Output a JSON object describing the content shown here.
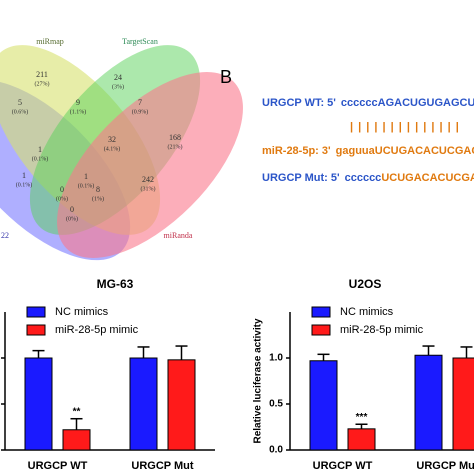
{
  "venn": {
    "sets": [
      "miRmap",
      "TargetScan",
      "miRanda",
      "22"
    ],
    "regions": [
      {
        "count": 211,
        "percent": "(27%)"
      },
      {
        "count": 24,
        "percent": "(3%)"
      },
      {
        "count": 5,
        "percent": "(0.6%)"
      },
      {
        "count": 9,
        "percent": "(1.1%)"
      },
      {
        "count": 7,
        "percent": "(0.9%)"
      },
      {
        "count": 168,
        "percent": "(21%)"
      },
      {
        "count": 1,
        "percent": "(0.1%)"
      },
      {
        "count": 32,
        "percent": "(4.1%)"
      },
      {
        "count": 1,
        "percent": "(0.1%)"
      },
      {
        "count": 1,
        "percent": "(0.1%)"
      },
      {
        "count": 242,
        "percent": "(31%)"
      },
      {
        "count": 0,
        "percent": "(0%)"
      },
      {
        "count": 8,
        "percent": "(1%)"
      },
      {
        "count": 0,
        "percent": "(0%)"
      }
    ]
  },
  "panel_b": {
    "label": "B",
    "wt_name": "URGCP WT: 5'",
    "wt_seq": "ccccccAGACUGUGAGCUCCU",
    "pairs": "| | | | | | | | | | | | | |",
    "mir_name": "miR-28-5p: 3'",
    "mir_seq_a": "gaguua",
    "mir_seq_b": "UCUGACACUCGAGG",
    "mut_name": "URGCP Mut: 5'",
    "mut_seq_a": "cccccc",
    "mut_seq_b": "UCUGACACUCGAGGA"
  },
  "chart_data": [
    {
      "type": "bar",
      "title": "MG-63",
      "categories": [
        "URGCP WT",
        "URGCP Mut"
      ],
      "ylim": [
        0,
        1.5
      ],
      "yticks": [
        {
          "value": 0,
          "label": "0.0"
        },
        {
          "value": 0.5,
          "label": "0.5"
        },
        {
          "value": 1,
          "label": "1.0"
        }
      ],
      "series": [
        {
          "name": "NC mimics",
          "color": "#1a1aff",
          "values": [
            1.0,
            1.0
          ],
          "errors": [
            0.08,
            0.12
          ]
        },
        {
          "name": "miR-28-5p mimic",
          "color": "#ff1a1a",
          "values": [
            0.22,
            0.98
          ],
          "errors": [
            0.12,
            0.15
          ],
          "significance": [
            "**",
            null
          ]
        }
      ]
    },
    {
      "type": "bar",
      "title": "U2OS",
      "y_label": "Relative luciferase activity",
      "categories": [
        "URGCP WT",
        "URGCP Mut"
      ],
      "ylim": [
        0,
        1.5
      ],
      "yticks": [
        {
          "value": 0,
          "label": "0.0"
        },
        {
          "value": 0.5,
          "label": "0.5"
        },
        {
          "value": 1,
          "label": "1.0"
        }
      ],
      "series": [
        {
          "name": "NC mimics",
          "color": "#1a1aff",
          "values": [
            0.97,
            1.03
          ],
          "errors": [
            0.07,
            0.1
          ]
        },
        {
          "name": "miR-28-5p mimic",
          "color": "#ff1a1a",
          "values": [
            0.23,
            1.0
          ],
          "errors": [
            0.05,
            0.12
          ],
          "significance": [
            "***",
            null
          ]
        }
      ]
    }
  ]
}
